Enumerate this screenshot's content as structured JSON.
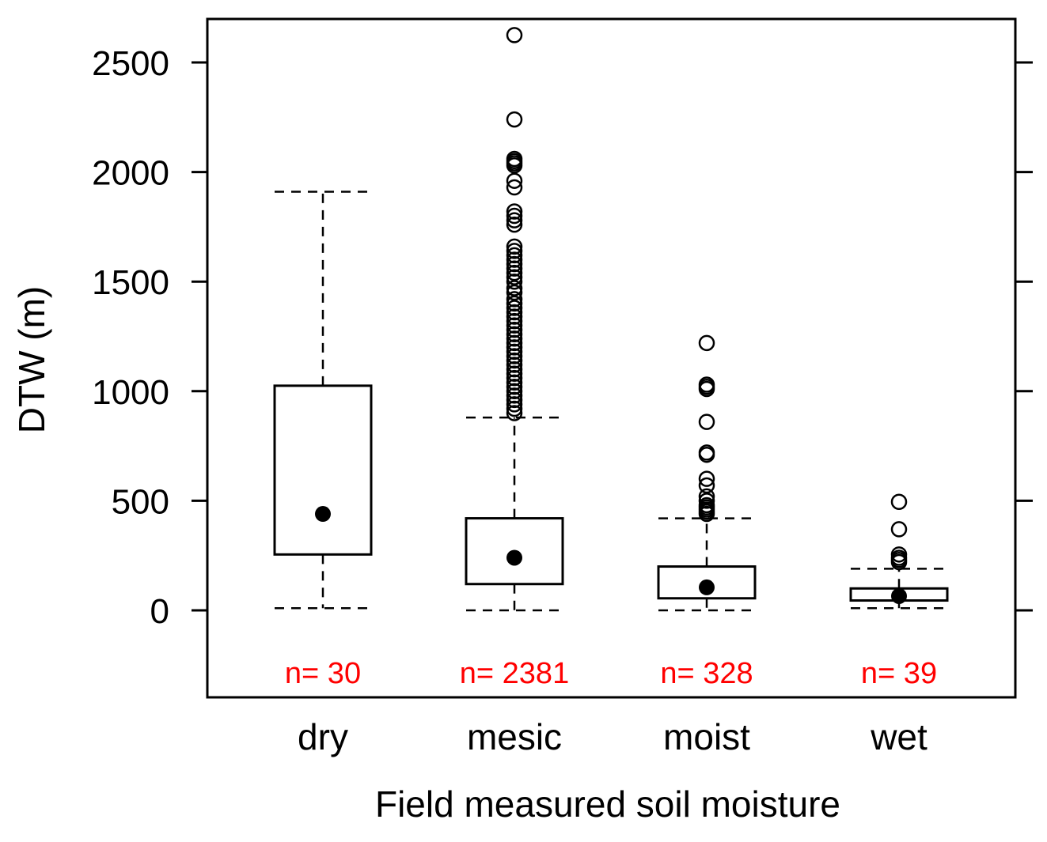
{
  "chart_data": {
    "type": "boxplot",
    "title": "",
    "xlabel": "Field measured soil moisture",
    "ylabel": "DTW (m)",
    "ylim": [
      -400,
      2700
    ],
    "yticks": [
      0,
      500,
      1000,
      1500,
      2000,
      2500
    ],
    "ytick_labels": [
      "0",
      "500",
      "1000",
      "1500",
      "2000",
      "2500"
    ],
    "grid": false,
    "categories": [
      "dry",
      "mesic",
      "moist",
      "wet"
    ],
    "n_labels": [
      "n= 30",
      "n= 2381",
      "n= 328",
      "n= 39"
    ],
    "colors": {
      "box": "#000000",
      "n_label": "#ff0000",
      "axis": "#000000"
    },
    "boxes": [
      {
        "category": "dry",
        "whisker_low": 10,
        "q1": 255,
        "median": 440,
        "q3": 1025,
        "whisker_high": 1910,
        "outliers": []
      },
      {
        "category": "mesic",
        "whisker_low": 0,
        "q1": 120,
        "median": 240,
        "q3": 420,
        "whisker_high": 880,
        "outliers": [
          2625,
          2240,
          2060,
          2050,
          2040,
          2030,
          1960,
          1930,
          1820,
          1800,
          1780,
          1760,
          1660,
          1640,
          1620,
          1600,
          1580,
          1560,
          1540,
          1520,
          1500,
          1470,
          1450,
          1420,
          1400,
          1380,
          1360,
          1340,
          1320,
          1300,
          1280,
          1260,
          1240,
          1220,
          1200,
          1180,
          1160,
          1140,
          1120,
          1100,
          1080,
          1060,
          1040,
          1020,
          1000,
          980,
          960,
          940,
          920,
          900
        ]
      },
      {
        "category": "moist",
        "whisker_low": 0,
        "q1": 55,
        "median": 105,
        "q3": 200,
        "whisker_high": 420,
        "outliers": [
          1220,
          1030,
          1020,
          1010,
          860,
          720,
          710,
          600,
          570,
          520,
          500,
          480,
          470,
          460,
          450,
          440
        ]
      },
      {
        "category": "wet",
        "whisker_low": 10,
        "q1": 45,
        "median": 65,
        "q3": 100,
        "whisker_high": 190,
        "outliers": [
          495,
          370,
          255,
          240,
          230,
          220
        ]
      }
    ]
  }
}
